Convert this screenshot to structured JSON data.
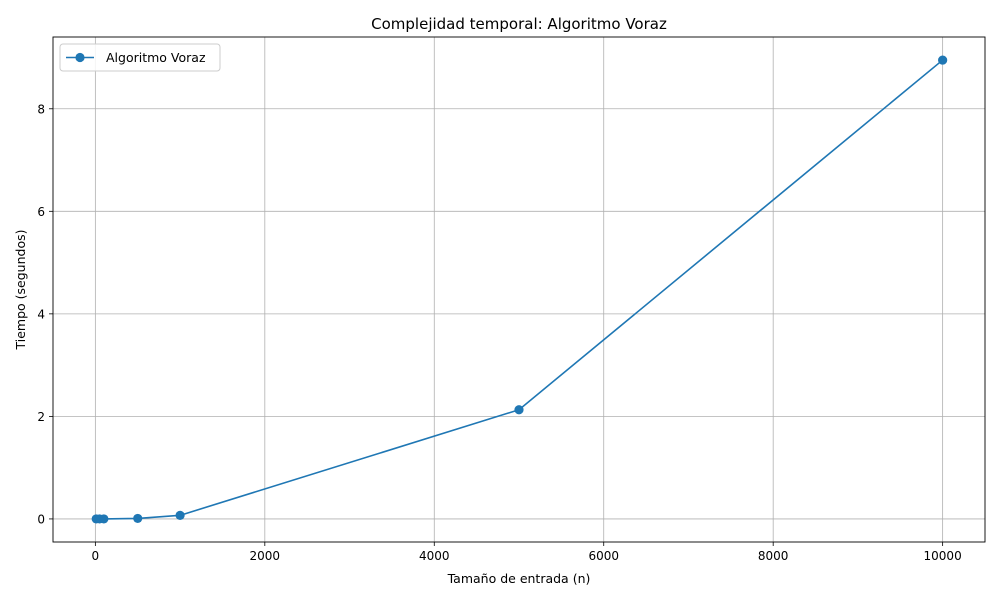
{
  "chart_data": {
    "type": "line",
    "title": "Complejidad temporal: Algoritmo Voraz",
    "xlabel": "Tamaño de entrada (n)",
    "ylabel": "Tiempo (segundos)",
    "xlim": [
      -500,
      10500
    ],
    "ylim": [
      -0.45,
      9.4
    ],
    "xticks": [
      0,
      2000,
      4000,
      6000,
      8000,
      10000
    ],
    "yticks": [
      0,
      2,
      4,
      6,
      8
    ],
    "grid": true,
    "legend_position": "top-left",
    "series": [
      {
        "name": "Algoritmo Voraz",
        "color": "#1f77b4",
        "marker": "circle",
        "x": [
          10,
          50,
          100,
          500,
          1000,
          5000,
          10000
        ],
        "y": [
          0.0,
          0.0,
          0.0,
          0.01,
          0.07,
          2.13,
          8.95
        ]
      }
    ]
  }
}
